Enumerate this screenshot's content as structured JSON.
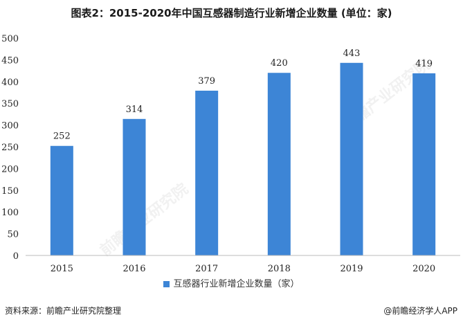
{
  "title": "图表2：2015-2020年中国互感器制造行业新增企业数量 (单位：家)",
  "source": "资料来源：前瞻产业研究院整理",
  "brand": "@前瞻经济学人APP",
  "watermark": "前瞻产业研究院",
  "colors": {
    "bar": "#3d85d6",
    "axis": "#bbbbbb"
  },
  "chart_data": {
    "type": "bar",
    "categories": [
      "2015",
      "2016",
      "2017",
      "2018",
      "2019",
      "2020"
    ],
    "series": [
      {
        "name": "互感器行业新增企业数量（家）",
        "values": [
          252,
          314,
          379,
          420,
          443,
          419
        ]
      }
    ],
    "ylim": [
      0,
      500
    ],
    "yticks": [
      0,
      50,
      100,
      150,
      200,
      250,
      300,
      350,
      400,
      450,
      500
    ],
    "grid": false,
    "legend_position": "bottom",
    "data_labels": true
  }
}
